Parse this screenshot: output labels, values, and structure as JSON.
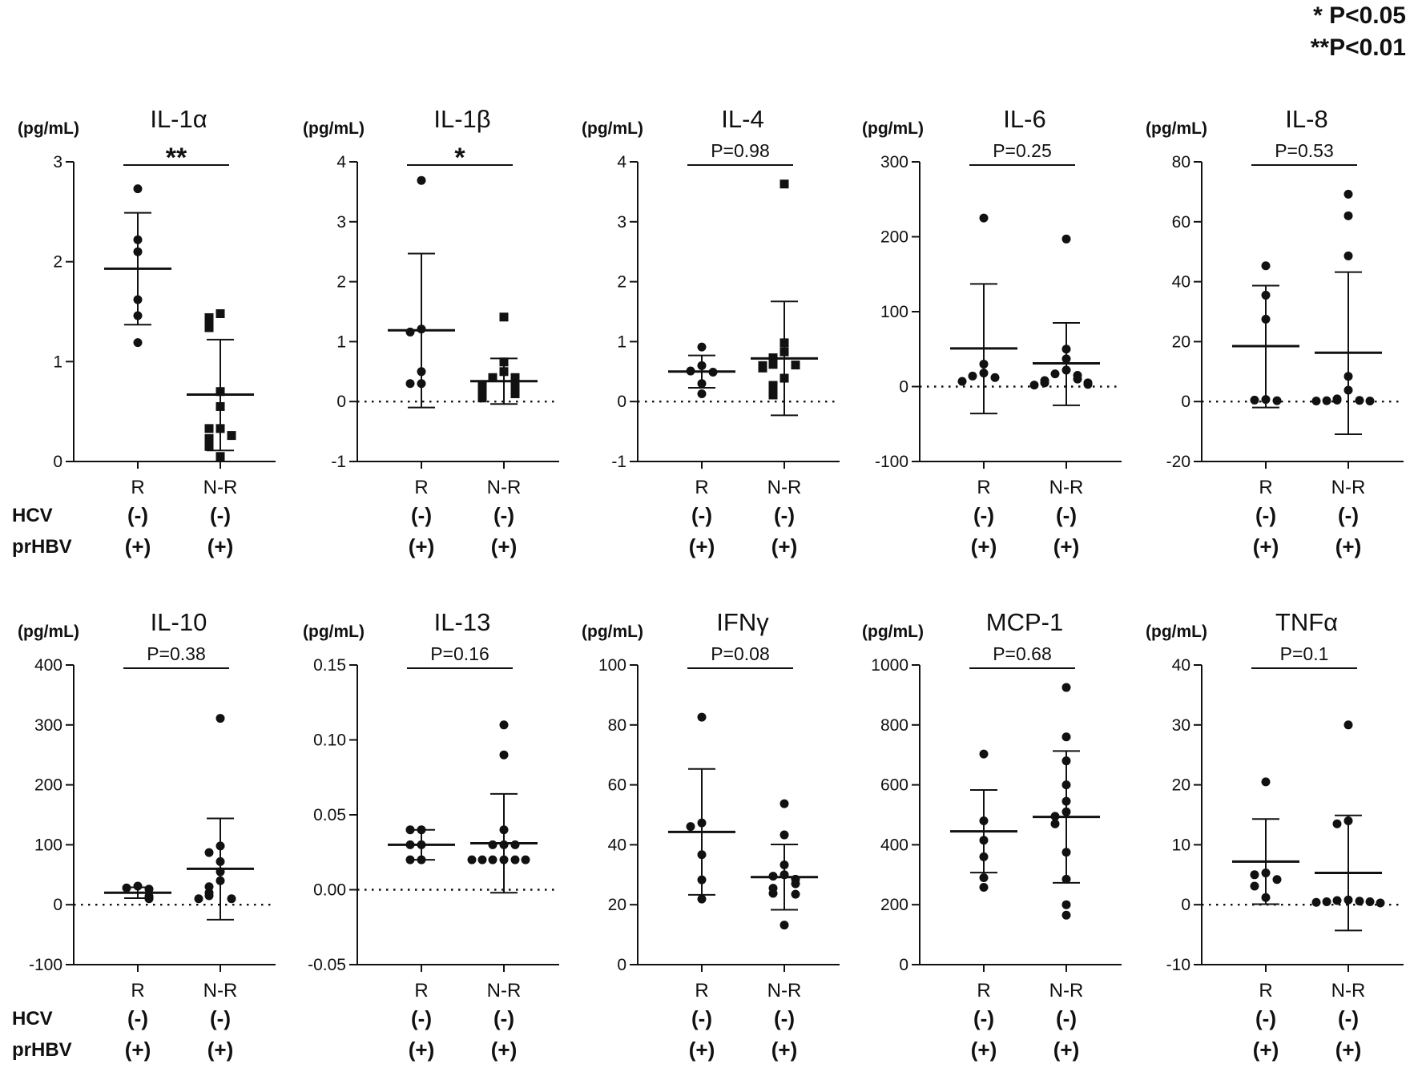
{
  "legend": {
    "single": "* P<0.05",
    "double": "**P<0.01"
  },
  "row_labels": {
    "hcv": "HCV",
    "prhbv": "prHBV"
  },
  "chart_data": [
    {
      "type": "scatter",
      "title": "IL-1α",
      "ylabel": "(pg/mL)",
      "ylim": [
        0,
        3
      ],
      "yticks": [
        0,
        1,
        2,
        3
      ],
      "tick_labels": [
        "0",
        "1",
        "2",
        "3"
      ],
      "zero_line": false,
      "significance": "**",
      "groups": [
        {
          "name": "R",
          "hcv": "(-)",
          "prhbv": "(+)",
          "marker": "circle",
          "mean": 1.93,
          "sd_low": 1.37,
          "sd_high": 2.49,
          "points": [
            2.73,
            2.22,
            2.1,
            1.62,
            1.46,
            1.19
          ]
        },
        {
          "name": "N-R",
          "hcv": "(-)",
          "prhbv": "(+)",
          "marker": "square",
          "mean": 0.67,
          "sd_low": 0.11,
          "sd_high": 1.22,
          "points": [
            1.48,
            1.44,
            1.38,
            1.34,
            0.7,
            0.55,
            0.33,
            0.33,
            0.26,
            0.23,
            0.15,
            0.05
          ]
        }
      ]
    },
    {
      "type": "scatter",
      "title": "IL-1β",
      "ylabel": "(pg/mL)",
      "ylim": [
        -1,
        4
      ],
      "yticks": [
        -1,
        0,
        1,
        2,
        3,
        4
      ],
      "tick_labels": [
        "-1",
        "0",
        "1",
        "2",
        "3",
        "4"
      ],
      "zero_line": true,
      "significance": "*",
      "groups": [
        {
          "name": "R",
          "hcv": "(-)",
          "prhbv": "(+)",
          "marker": "circle",
          "mean": 1.19,
          "sd_low": -0.1,
          "sd_high": 2.47,
          "points": [
            3.69,
            1.21,
            1.16,
            0.5,
            0.3,
            0.3
          ]
        },
        {
          "name": "N-R",
          "hcv": "(-)",
          "prhbv": "(+)",
          "marker": "square",
          "mean": 0.34,
          "sd_low": -0.04,
          "sd_high": 0.72,
          "points": [
            1.41,
            0.66,
            0.5,
            0.4,
            0.4,
            0.3,
            0.28,
            0.22,
            0.18,
            0.13,
            0.08,
            0.06
          ]
        }
      ]
    },
    {
      "type": "scatter",
      "title": "IL-4",
      "ylabel": "(pg/mL)",
      "ylim": [
        -1,
        4
      ],
      "yticks": [
        -1,
        0,
        1,
        2,
        3,
        4
      ],
      "tick_labels": [
        "-1",
        "0",
        "1",
        "2",
        "3",
        "4"
      ],
      "zero_line": true,
      "significance": "P=0.98",
      "groups": [
        {
          "name": "R",
          "hcv": "(-)",
          "prhbv": "(+)",
          "marker": "circle",
          "mean": 0.5,
          "sd_low": 0.23,
          "sd_high": 0.77,
          "points": [
            0.91,
            0.6,
            0.51,
            0.49,
            0.3,
            0.13
          ]
        },
        {
          "name": "N-R",
          "hcv": "(-)",
          "prhbv": "(+)",
          "marker": "square",
          "mean": 0.72,
          "sd_low": -0.23,
          "sd_high": 1.67,
          "points": [
            3.63,
            0.98,
            0.83,
            0.73,
            0.62,
            0.61,
            0.6,
            0.56,
            0.39,
            0.27,
            0.24,
            0.11
          ]
        }
      ]
    },
    {
      "type": "scatter",
      "title": "IL-6",
      "ylabel": "(pg/mL)",
      "ylim": [
        -100,
        300
      ],
      "yticks": [
        -100,
        0,
        100,
        200,
        300
      ],
      "tick_labels": [
        "-100",
        "0",
        "100",
        "200",
        "300"
      ],
      "zero_line": true,
      "significance": "P=0.25",
      "groups": [
        {
          "name": "R",
          "hcv": "(-)",
          "prhbv": "(+)",
          "marker": "circle",
          "mean": 51,
          "sd_low": -36,
          "sd_high": 137,
          "points": [
            225,
            30,
            18,
            14,
            12,
            7
          ]
        },
        {
          "name": "N-R",
          "hcv": "(-)",
          "prhbv": "(+)",
          "marker": "circle",
          "mean": 31,
          "sd_low": -25,
          "sd_high": 85,
          "points": [
            197,
            50,
            37,
            22,
            17,
            15,
            10,
            8,
            5,
            5,
            3,
            2
          ]
        }
      ]
    },
    {
      "type": "scatter",
      "title": "IL-8",
      "ylabel": "(pg/mL)",
      "ylim": [
        -20,
        80
      ],
      "yticks": [
        -20,
        0,
        20,
        40,
        60,
        80
      ],
      "tick_labels": [
        "-20",
        "0",
        "20",
        "40",
        "60",
        "80"
      ],
      "zero_line": true,
      "significance": "P=0.53",
      "groups": [
        {
          "name": "R",
          "hcv": "(-)",
          "prhbv": "(+)",
          "marker": "circle",
          "mean": 18.5,
          "sd_low": -2,
          "sd_high": 38.7,
          "points": [
            45.3,
            35.5,
            27.5,
            0.7,
            0.5,
            0.3
          ]
        },
        {
          "name": "N-R",
          "hcv": "(-)",
          "prhbv": "(+)",
          "marker": "circle",
          "mean": 16.3,
          "sd_low": -10.9,
          "sd_high": 43.2,
          "points": [
            69.2,
            62,
            48.6,
            8.4,
            3.8,
            0.9,
            0.5,
            0.4,
            0.3,
            0.2,
            0.2
          ]
        }
      ]
    },
    {
      "type": "scatter",
      "title": "IL-10",
      "ylabel": "(pg/mL)",
      "ylim": [
        -100,
        400
      ],
      "yticks": [
        -100,
        0,
        100,
        200,
        300,
        400
      ],
      "tick_labels": [
        "-100",
        "0",
        "100",
        "200",
        "300",
        "400"
      ],
      "zero_line": true,
      "significance": "P=0.38",
      "groups": [
        {
          "name": "R",
          "hcv": "(-)",
          "prhbv": "(+)",
          "marker": "circle",
          "mean": 20,
          "sd_low": 11,
          "sd_high": 29,
          "points": [
            31,
            28,
            26,
            14,
            12,
            10
          ]
        },
        {
          "name": "N-R",
          "hcv": "(-)",
          "prhbv": "(+)",
          "marker": "circle",
          "mean": 60,
          "sd_low": -25,
          "sd_high": 144,
          "points": [
            311,
            98,
            87,
            72,
            55,
            40,
            30,
            20,
            15,
            10,
            10
          ]
        }
      ]
    },
    {
      "type": "scatter",
      "title": "IL-13",
      "ylabel": "(pg/mL)",
      "ylim": [
        -0.05,
        0.15
      ],
      "yticks": [
        -0.05,
        0,
        0.05,
        0.1,
        0.15
      ],
      "tick_labels": [
        "-0.05",
        "0.00",
        "0.05",
        "0.10",
        "0.15"
      ],
      "zero_line": true,
      "significance": "P=0.16",
      "groups": [
        {
          "name": "R",
          "hcv": "(-)",
          "prhbv": "(+)",
          "marker": "circle",
          "mean": 0.03,
          "sd_low": 0.02,
          "sd_high": 0.04,
          "points": [
            0.04,
            0.04,
            0.03,
            0.03,
            0.02,
            0.02
          ]
        },
        {
          "name": "N-R",
          "hcv": "(-)",
          "prhbv": "(+)",
          "marker": "circle",
          "mean": 0.031,
          "sd_low": -0.002,
          "sd_high": 0.064,
          "points": [
            0.11,
            0.09,
            0.04,
            0.03,
            0.03,
            0.03,
            0.02,
            0.02,
            0.02,
            0.02,
            0.02,
            0.02
          ]
        }
      ]
    },
    {
      "type": "scatter",
      "title": "IFNγ",
      "ylabel": "(pg/mL)",
      "ylim": [
        0,
        100
      ],
      "yticks": [
        0,
        20,
        40,
        60,
        80,
        100
      ],
      "tick_labels": [
        "0",
        "20",
        "40",
        "60",
        "80",
        "100"
      ],
      "zero_line": false,
      "significance": "P=0.08",
      "groups": [
        {
          "name": "R",
          "hcv": "(-)",
          "prhbv": "(+)",
          "marker": "circle",
          "mean": 44.3,
          "sd_low": 23.3,
          "sd_high": 65.3,
          "points": [
            82.6,
            47.3,
            46.1,
            36.7,
            28.3,
            21.9
          ]
        },
        {
          "name": "N-R",
          "hcv": "(-)",
          "prhbv": "(+)",
          "marker": "circle",
          "mean": 29.2,
          "sd_low": 18.3,
          "sd_high": 40.1,
          "points": [
            53.7,
            43.3,
            33.3,
            30,
            29.5,
            28.5,
            27,
            25.5,
            23.8,
            23.5,
            13.2
          ]
        }
      ]
    },
    {
      "type": "scatter",
      "title": "MCP-1",
      "ylabel": "(pg/mL)",
      "ylim": [
        0,
        1000
      ],
      "yticks": [
        0,
        200,
        400,
        600,
        800,
        1000
      ],
      "tick_labels": [
        "0",
        "200",
        "400",
        "600",
        "800",
        "1000"
      ],
      "zero_line": false,
      "significance": "P=0.68",
      "groups": [
        {
          "name": "R",
          "hcv": "(-)",
          "prhbv": "(+)",
          "marker": "circle",
          "mean": 445,
          "sd_low": 307,
          "sd_high": 583,
          "points": [
            703,
            480,
            415,
            360,
            290,
            258
          ]
        },
        {
          "name": "N-R",
          "hcv": "(-)",
          "prhbv": "(+)",
          "marker": "circle",
          "mean": 493,
          "sd_low": 273,
          "sd_high": 713,
          "points": [
            925,
            760,
            680,
            600,
            545,
            510,
            495,
            470,
            375,
            285,
            200,
            165
          ]
        }
      ]
    },
    {
      "type": "scatter",
      "title": "TNFα",
      "ylabel": "(pg/mL)",
      "ylim": [
        -10,
        40
      ],
      "yticks": [
        -10,
        0,
        10,
        20,
        30,
        40
      ],
      "tick_labels": [
        "-10",
        "0",
        "10",
        "20",
        "30",
        "40"
      ],
      "zero_line": true,
      "significance": "P=0.1",
      "groups": [
        {
          "name": "R",
          "hcv": "(-)",
          "prhbv": "(+)",
          "marker": "circle",
          "mean": 7.2,
          "sd_low": 0.1,
          "sd_high": 14.3,
          "points": [
            20.5,
            5.3,
            5,
            4.2,
            3.1,
            1.2
          ]
        },
        {
          "name": "N-R",
          "hcv": "(-)",
          "prhbv": "(+)",
          "marker": "circle",
          "mean": 5.3,
          "sd_low": -4.3,
          "sd_high": 14.9,
          "points": [
            30,
            14,
            13.5,
            0.8,
            0.7,
            0.6,
            0.5,
            0.5,
            0.4,
            0.3
          ]
        }
      ]
    }
  ]
}
